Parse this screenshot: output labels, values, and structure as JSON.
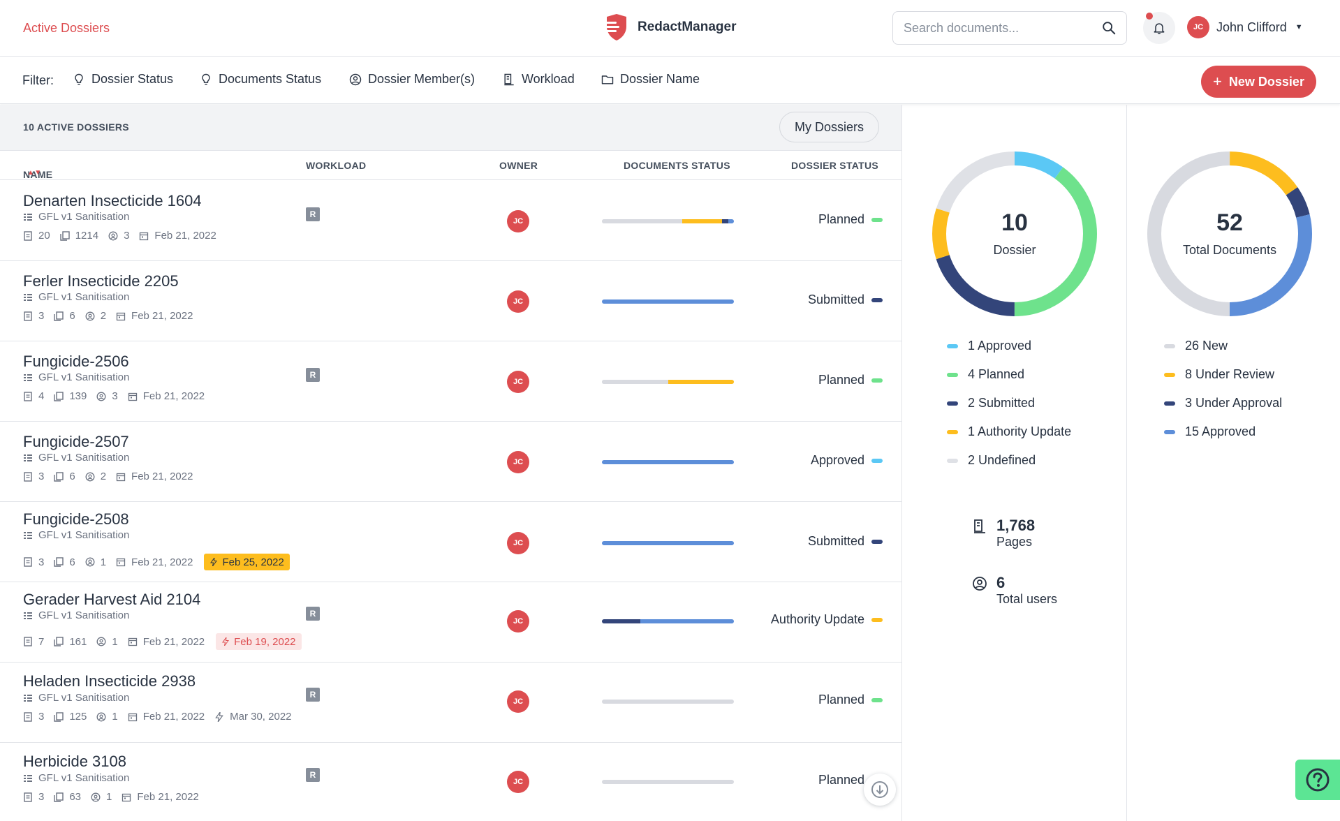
{
  "header": {
    "nav_title": "Active Dossiers",
    "brand_name": "RedactManager",
    "search_placeholder": "Search documents...",
    "user_initials": "JC",
    "user_name": "John Clifford"
  },
  "filters": {
    "label": "Filter:",
    "items": [
      "Dossier Status",
      "Documents Status",
      "Dossier Member(s)",
      "Workload",
      "Dossier Name"
    ],
    "new_button": "New Dossier"
  },
  "listing": {
    "count_label": "10 ACTIVE DOSSIERS",
    "my_dossiers": "My Dossiers",
    "columns": [
      "NAME",
      "WORKLOAD",
      "OWNER",
      "DOCUMENTS STATUS",
      "DOSSIER STATUS"
    ],
    "rows": [
      {
        "name": "Denarten Insecticide 1604",
        "template": "GFL v1 Sanitisation",
        "docs": "20",
        "pages": "1214",
        "members": "3",
        "date": "Feb 21, 2022",
        "workload": "R",
        "owner": "JC",
        "status": "Planned"
      },
      {
        "name": "Ferler Insecticide 2205",
        "template": "GFL v1 Sanitisation",
        "docs": "3",
        "pages": "6",
        "members": "2",
        "date": "Feb 21, 2022",
        "workload": "",
        "owner": "JC",
        "status": "Submitted"
      },
      {
        "name": "Fungicide-2506",
        "template": "GFL v1 Sanitisation",
        "docs": "4",
        "pages": "139",
        "members": "3",
        "date": "Feb 21, 2022",
        "workload": "R",
        "owner": "JC",
        "status": "Planned"
      },
      {
        "name": "Fungicide-2507",
        "template": "GFL v1 Sanitisation",
        "docs": "3",
        "pages": "6",
        "members": "2",
        "date": "Feb 21, 2022",
        "workload": "",
        "owner": "JC",
        "status": "Approved"
      },
      {
        "name": "Fungicide-2508",
        "template": "GFL v1 Sanitisation",
        "docs": "3",
        "pages": "6",
        "members": "1",
        "date": "Feb 21, 2022",
        "due": "Feb 25, 2022",
        "workload": "",
        "owner": "JC",
        "status": "Submitted"
      },
      {
        "name": "Gerader Harvest Aid 2104",
        "template": "GFL v1 Sanitisation",
        "docs": "7",
        "pages": "161",
        "members": "1",
        "date": "Feb 21, 2022",
        "due": "Feb 19, 2022",
        "workload": "R",
        "owner": "JC",
        "status": "Authority Update"
      },
      {
        "name": "Heladen Insecticide 2938",
        "template": "GFL v1 Sanitisation",
        "docs": "3",
        "pages": "125",
        "members": "1",
        "date": "Feb 21, 2022",
        "due": "Mar 30, 2022",
        "workload": "R",
        "owner": "JC",
        "status": "Planned"
      },
      {
        "name": "Herbicide 3108",
        "template": "GFL v1 Sanitisation",
        "docs": "3",
        "pages": "63",
        "members": "1",
        "date": "Feb 21, 2022",
        "workload": "R",
        "owner": "JC",
        "status": "Planned"
      }
    ]
  },
  "stats": {
    "dossiers": {
      "total": "10",
      "label": "Dossier",
      "legend": [
        "1 Approved",
        "4 Planned",
        "2 Submitted",
        "1 Authority Update",
        "2 Undefined"
      ]
    },
    "documents": {
      "total": "52",
      "label": "Total Documents",
      "legend": [
        "26 New",
        "8 Under Review",
        "3 Under Approval",
        "15 Approved"
      ]
    },
    "pages_value": "1,768",
    "pages_label": "Pages",
    "users_value": "6",
    "users_label": "Total users"
  },
  "colors": {
    "accent": "#dd4d50",
    "approved": "#5bc8f5",
    "planned": "#6ee28c",
    "submitted": "#33457a",
    "authority_update": "#fdbd1e",
    "undefined": "#dfe1e6",
    "doc_new": "#d8dae0",
    "doc_under_review": "#fdbd1e",
    "doc_under_approval": "#33457a",
    "doc_approved": "#5d8ed9"
  }
}
